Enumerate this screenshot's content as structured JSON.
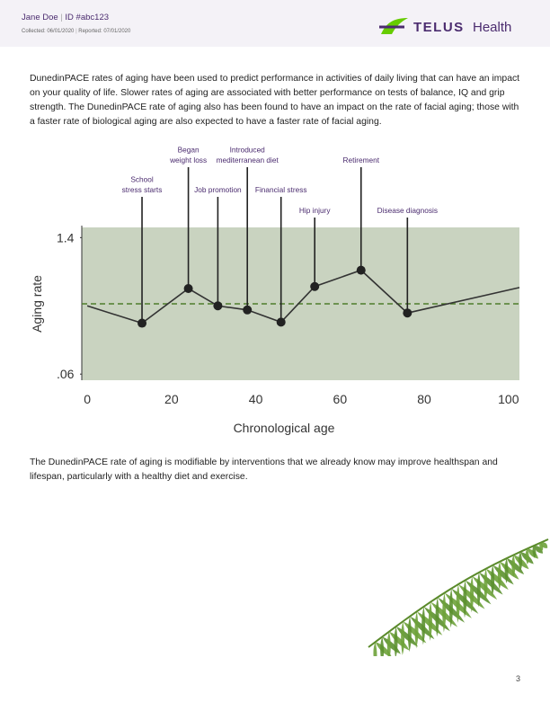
{
  "header": {
    "name": "Jane Doe",
    "id": "ID #abc123",
    "collected": "Collected: 06/01/2020",
    "reported": "Reported: 07/01/2020",
    "logo_brand": "TELUS",
    "logo_suffix": "Health"
  },
  "paragraphs": [
    "DunedinPACE rates of aging have been used to predict performance in activities of daily living that can have an impact on your quality of life. Slower rates of aging are associated with better performance on tests of balance, IQ and grip strength. The DunedinPACE rate of aging also has been found to have an impact on the rate of facial aging; those with a faster rate of biological aging are also expected to have a faster rate of facial aging.",
    "The DunedinPACE rate of aging is modifiable by interventions that we already know may improve healthspan and lifespan, particularly with a healthy diet and exercise."
  ],
  "chart_data": {
    "type": "line",
    "x_label": "Chronological age",
    "y_label": "Aging rate",
    "x": [
      0,
      13,
      24,
      31,
      38,
      46,
      54,
      65,
      76,
      102.6
    ],
    "values": [
      0.73,
      0.56,
      0.9,
      0.73,
      0.69,
      0.57,
      0.92,
      1.08,
      0.66,
      0.91
    ],
    "point_labels": [
      null,
      [
        "School",
        "stress starts"
      ],
      [
        "Began",
        "weight loss"
      ],
      [
        "Job promotion"
      ],
      [
        "Introduced",
        "mediterranean diet"
      ],
      [
        "Financial stress"
      ],
      [
        "Hip injury"
      ],
      [
        "Retirement"
      ],
      [
        "Disease diagnosis"
      ],
      null
    ],
    "color": "#333333",
    "label_color": "#4b2c6f",
    "area_color": "#c9d3c0",
    "reference_value": 0.75,
    "reference_color": "#4f7d2c",
    "xlim": [
      -1.3,
      102.6
    ],
    "ylim": [
      0,
      1.5
    ],
    "xticks": [
      0,
      20,
      40,
      60,
      80,
      100
    ],
    "yticks": [
      1.4,
      {
        "value": 0.06,
        "label": ".06"
      }
    ]
  },
  "page_number": "3"
}
